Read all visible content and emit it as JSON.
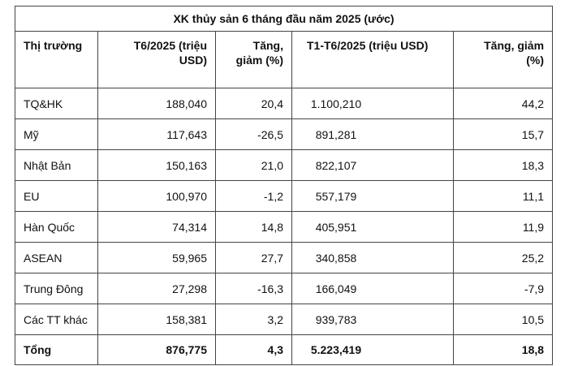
{
  "table": {
    "title": "XK thủy sản 6 tháng đầu năm 2025 (ước)",
    "headers": {
      "market": "Thị trường",
      "t6_line1": "T6/2025 (triệu",
      "t6_line2": "USD)",
      "chg1_line1": "Tăng,",
      "chg1_line2": "giảm (%)",
      "t1t6": "T1-T6/2025 (triệu USD)",
      "chg2_line1": "Tăng, giảm",
      "chg2_line2": "(%)"
    },
    "rows": [
      {
        "market": "TQ&HK",
        "t6": "188,040",
        "chg1": "20,4",
        "t1t6": "1.100,210",
        "chg2": "44,2"
      },
      {
        "market": "Mỹ",
        "t6": "117,643",
        "chg1": "-26,5",
        "t1t6": "891,281",
        "chg2": "15,7"
      },
      {
        "market": "Nhật Bản",
        "t6": "150,163",
        "chg1": "21,0",
        "t1t6": "822,107",
        "chg2": "18,3"
      },
      {
        "market": "EU",
        "t6": "100,970",
        "chg1": "-1,2",
        "t1t6": "557,179",
        "chg2": "11,1"
      },
      {
        "market": "Hàn Quốc",
        "t6": "74,314",
        "chg1": "14,8",
        "t1t6": "405,951",
        "chg2": "11,9"
      },
      {
        "market": "ASEAN",
        "t6": "59,965",
        "chg1": "27,7",
        "t1t6": "340,858",
        "chg2": "25,2"
      },
      {
        "market": "Trung Đông",
        "t6": "27,298",
        "chg1": "-16,3",
        "t1t6": "166,049",
        "chg2": "-7,9"
      },
      {
        "market": "Các TT khác",
        "t6": "158,381",
        "chg1": "3,2",
        "t1t6": "939,783",
        "chg2": "10,5"
      }
    ],
    "total": {
      "market": "Tổng",
      "t6": "876,775",
      "chg1": "4,3",
      "t1t6": "5.223,419",
      "chg2": "18,8"
    }
  }
}
